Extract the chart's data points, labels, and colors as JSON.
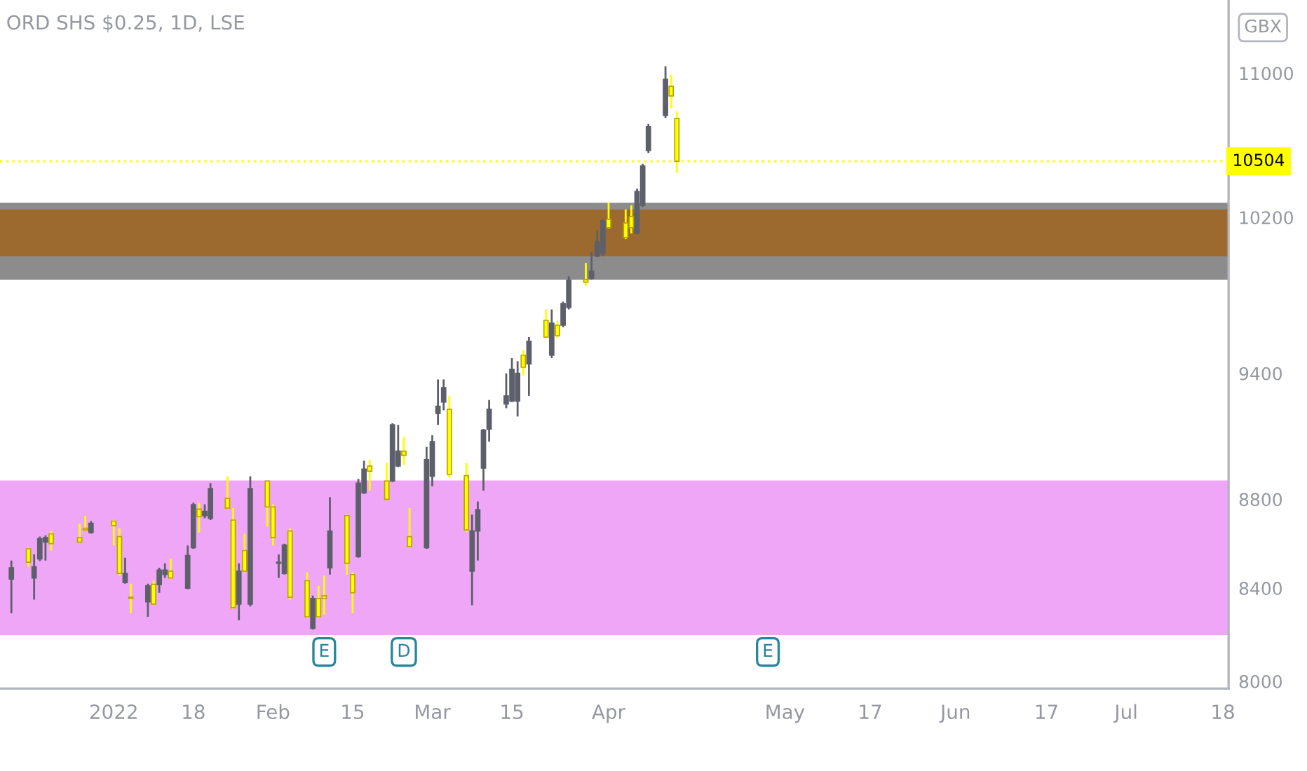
{
  "chart_data": {
    "type": "candlestick",
    "title": "ORD SHS $0.25, 1D, LSE",
    "x": [
      "2021-12-17",
      "2021-12-20",
      "2021-12-21",
      "2021-12-22",
      "2021-12-23",
      "2021-12-24",
      "2021-12-29",
      "2021-12-30",
      "2021-12-31",
      "2022-01-04",
      "2022-01-05",
      "2022-01-06",
      "2022-01-07",
      "2022-01-10",
      "2022-01-11",
      "2022-01-12",
      "2022-01-13",
      "2022-01-14",
      "2022-01-17",
      "2022-01-18",
      "2022-01-19",
      "2022-01-20",
      "2022-01-21",
      "2022-01-24",
      "2022-01-25",
      "2022-01-26",
      "2022-01-27",
      "2022-01-28",
      "2022-01-31",
      "2022-02-01",
      "2022-02-02",
      "2022-02-03",
      "2022-02-04",
      "2022-02-07",
      "2022-02-08",
      "2022-02-09",
      "2022-02-10",
      "2022-02-11",
      "2022-02-14",
      "2022-02-15",
      "2022-02-16",
      "2022-02-17",
      "2022-02-18",
      "2022-02-21",
      "2022-02-22",
      "2022-02-23",
      "2022-02-24",
      "2022-02-25",
      "2022-02-28",
      "2022-03-01",
      "2022-03-02",
      "2022-03-03",
      "2022-03-04",
      "2022-03-07",
      "2022-03-08",
      "2022-03-09",
      "2022-03-10",
      "2022-03-11",
      "2022-03-14",
      "2022-03-15",
      "2022-03-16",
      "2022-03-17",
      "2022-03-18",
      "2022-03-21",
      "2022-03-22",
      "2022-03-23",
      "2022-03-24",
      "2022-03-25",
      "2022-03-28",
      "2022-03-29",
      "2022-03-30",
      "2022-03-31",
      "2022-04-01",
      "2022-04-04",
      "2022-04-05",
      "2022-04-06",
      "2022-04-07",
      "2022-04-08",
      "2022-04-11",
      "2022-04-12",
      "2022-04-13"
    ],
    "ohlc": [
      [
        8440,
        8522,
        8290,
        8490
      ],
      [
        8575,
        8580,
        8495,
        8515
      ],
      [
        8445,
        8550,
        8350,
        8495
      ],
      [
        8530,
        8630,
        8520,
        8620
      ],
      [
        8605,
        8636,
        8522,
        8625
      ],
      [
        8642,
        8655,
        8567,
        8598
      ],
      [
        8625,
        8688,
        8600,
        8605
      ],
      [
        8668,
        8725,
        8655,
        8660
      ],
      [
        8649,
        8700,
        8643,
        8690
      ],
      [
        8700,
        8706,
        8590,
        8680
      ],
      [
        8630,
        8668,
        8455,
        8465
      ],
      [
        8425,
        8535,
        8420,
        8465
      ],
      [
        8360,
        8420,
        8290,
        8355
      ],
      [
        8340,
        8420,
        8275,
        8410
      ],
      [
        8417,
        8433,
        8325,
        8330
      ],
      [
        8415,
        8490,
        8380,
        8480
      ],
      [
        8460,
        8510,
        8445,
        8480
      ],
      [
        8475,
        8530,
        8440,
        8445
      ],
      [
        8400,
        8590,
        8395,
        8545
      ],
      [
        8580,
        8785,
        8575,
        8775
      ],
      [
        8755,
        8785,
        8649,
        8720
      ],
      [
        8725,
        8777,
        8713,
        8745
      ],
      [
        8713,
        8875,
        8705,
        8850
      ],
      [
        8805,
        8907,
        8755,
        8760
      ],
      [
        8705,
        8760,
        8310,
        8315
      ],
      [
        8330,
        8510,
        8260,
        8475
      ],
      [
        8567,
        8643,
        8470,
        8475
      ],
      [
        8330,
        8907,
        8320,
        8850
      ],
      [
        8885,
        8885,
        8675,
        8765
      ],
      [
        8765,
        8777,
        8590,
        8625
      ],
      [
        8510,
        8550,
        8445,
        8515
      ],
      [
        8465,
        8598,
        8460,
        8592
      ],
      [
        8655,
        8668,
        8350,
        8360
      ],
      [
        8433,
        8470,
        8270,
        8275
      ],
      [
        8225,
        8367,
        8220,
        8355
      ],
      [
        8355,
        8410,
        8270,
        8275
      ],
      [
        8367,
        8455,
        8285,
        8355
      ],
      [
        8490,
        8810,
        8460,
        8655
      ],
      [
        8725,
        8730,
        8460,
        8510
      ],
      [
        8460,
        8470,
        8290,
        8380
      ],
      [
        8540,
        8895,
        8535,
        8875
      ],
      [
        8830,
        8980,
        8825,
        8940
      ],
      [
        8955,
        8985,
        8841,
        8930
      ],
      [
        8885,
        8970,
        8795,
        8800
      ],
      [
        8885,
        9158,
        8880,
        9150
      ],
      [
        8955,
        9150,
        8950,
        9025
      ],
      [
        9025,
        9092,
        8960,
        9005
      ],
      [
        8630,
        8760,
        8580,
        8585
      ],
      [
        8580,
        9045,
        8575,
        8985
      ],
      [
        8907,
        9100,
        8860,
        9070
      ],
      [
        9205,
        9370,
        9150,
        9240
      ],
      [
        9260,
        9370,
        9220,
        9330
      ],
      [
        9225,
        9290,
        8900,
        8915
      ],
      [
        8910,
        8970,
        8650,
        8660
      ],
      [
        8475,
        8730,
        8325,
        8655
      ],
      [
        8655,
        8790,
        8522,
        8753
      ],
      [
        8945,
        9130,
        8840,
        9125
      ],
      [
        9130,
        9270,
        9070,
        9225
      ],
      [
        9250,
        9400,
        9230,
        9290
      ],
      [
        9265,
        9475,
        9260,
        9420
      ],
      [
        9265,
        9460,
        9190,
        9400
      ],
      [
        9490,
        9516,
        9390,
        9430
      ],
      [
        9447,
        9580,
        9290,
        9560
      ],
      [
        9665,
        9720,
        9575,
        9580
      ],
      [
        9490,
        9720,
        9475,
        9650
      ],
      [
        9640,
        9660,
        9575,
        9587
      ],
      [
        9640,
        9760,
        9630,
        9750
      ],
      [
        9730,
        9890,
        9720,
        9870
      ],
      [
        9873,
        9960,
        9840,
        9860
      ],
      [
        9880,
        10019,
        9873,
        9917
      ],
      [
        9995,
        10130,
        9990,
        10070
      ],
      [
        10010,
        10190,
        9995,
        10182
      ],
      [
        10190,
        10280,
        10140,
        10145
      ],
      [
        10170,
        10243,
        10085,
        10093
      ],
      [
        10205,
        10265,
        10115,
        10145
      ],
      [
        10115,
        10355,
        10110,
        10340
      ],
      [
        10265,
        10490,
        10255,
        10478
      ],
      [
        10564,
        10712,
        10550,
        10696
      ],
      [
        10760,
        11040,
        10745,
        10965
      ],
      [
        10925,
        10990,
        10800,
        10870
      ],
      [
        10743,
        10783,
        10440,
        10504
      ]
    ],
    "colors": [
      "#5d606b",
      "#ffff00",
      "#5d606b",
      "#5d606b",
      "#5d606b",
      "#ffff00",
      "#ffff00",
      "#ffff00",
      "#5d606b",
      "#ffff00",
      "#ffff00",
      "#5d606b",
      "#ffff00",
      "#5d606b",
      "#ffff00",
      "#5d606b",
      "#5d606b",
      "#ffff00",
      "#5d606b",
      "#5d606b",
      "#ffff00",
      "#5d606b",
      "#5d606b",
      "#ffff00",
      "#ffff00",
      "#5d606b",
      "#ffff00",
      "#5d606b",
      "#ffff00",
      "#ffff00",
      "#5d606b",
      "#5d606b",
      "#ffff00",
      "#ffff00",
      "#5d606b",
      "#ffff00",
      "#ffff00",
      "#5d606b",
      "#ffff00",
      "#ffff00",
      "#5d606b",
      "#5d606b",
      "#ffff00",
      "#ffff00",
      "#5d606b",
      "#5d606b",
      "#ffff00",
      "#ffff00",
      "#5d606b",
      "#5d606b",
      "#5d606b",
      "#5d606b",
      "#ffff00",
      "#ffff00",
      "#5d606b",
      "#5d606b",
      "#5d606b",
      "#5d606b",
      "#5d606b",
      "#5d606b",
      "#5d606b",
      "#ffff00",
      "#5d606b",
      "#ffff00",
      "#5d606b",
      "#ffff00",
      "#5d606b",
      "#5d606b",
      "#ffff00",
      "#5d606b",
      "#5d606b",
      "#5d606b",
      "#ffff00",
      "#ffff00",
      "#ffff00",
      "#5d606b",
      "#5d606b",
      "#5d606b",
      "#5d606b",
      "#ffff00",
      "#ffff00"
    ],
    "log": true,
    "xlim": [
      "2021-12-15",
      "2022-07-19"
    ],
    "xticks": [
      {
        "value": "2022-01-04",
        "label": "2022"
      },
      {
        "value": "2022-01-18",
        "label": "18"
      },
      {
        "value": "2022-02-01",
        "label": "Feb"
      },
      {
        "value": "2022-02-15",
        "label": "15"
      },
      {
        "value": "2022-03-01",
        "label": "Mar"
      },
      {
        "value": "2022-03-15",
        "label": "15"
      },
      {
        "value": "2022-04-01",
        "label": "Apr"
      },
      {
        "value": "2022-05-02",
        "label": "May"
      },
      {
        "value": "2022-05-17",
        "label": "17"
      },
      {
        "value": "2022-06-01",
        "label": "Jun"
      },
      {
        "value": "2022-06-17",
        "label": "17"
      },
      {
        "value": "2022-07-01",
        "label": "Jul"
      },
      {
        "value": "2022-07-18",
        "label": "18"
      }
    ],
    "ylim": [
      7970,
      11430
    ],
    "yticks": [
      8000,
      8400,
      8800,
      9400,
      10200,
      11000
    ],
    "ref_lines": [
      {
        "axis": "y",
        "value": 10504,
        "label": "10504",
        "color": "#ffff00",
        "line_style": "dotted"
      }
    ],
    "bands": [
      {
        "axis": "y",
        "from": 8196,
        "to": 8887,
        "color": "#efa6f7"
      },
      {
        "axis": "y",
        "from": 9873,
        "to": 10279,
        "color": "#8c8c8c"
      },
      {
        "axis": "y",
        "from": 9995,
        "to": 10243,
        "color": "#9c6a2e"
      }
    ],
    "annotations": [
      "GBX",
      {
        "text": "E",
        "x": "2022-02-10",
        "y": 8124
      },
      {
        "text": "D",
        "x": "2022-02-24",
        "y": 8124
      },
      {
        "text": "E",
        "x": "2022-04-29",
        "y": 8124
      }
    ],
    "grid": false,
    "legend": false
  }
}
